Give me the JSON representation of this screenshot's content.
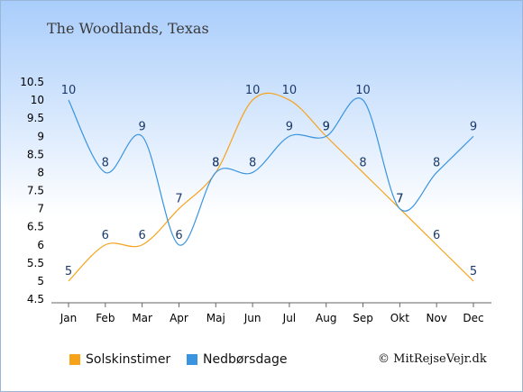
{
  "title": "The Woodlands, Texas",
  "credit": "© MitRejseVejr.dk",
  "chart_data": {
    "type": "line",
    "categories": [
      "Jan",
      "Feb",
      "Mar",
      "Apr",
      "Maj",
      "Jun",
      "Jul",
      "Aug",
      "Sep",
      "Okt",
      "Nov",
      "Dec"
    ],
    "ylim": [
      4.5,
      10.5
    ],
    "yticks": [
      "4.5",
      "5",
      "5.5",
      "6",
      "6.5",
      "7",
      "7.5",
      "8",
      "8.5",
      "9",
      "9.5",
      "10",
      "10.5"
    ],
    "grid": false,
    "legend": "bottom",
    "series": [
      {
        "name": "Solskinstimer",
        "color": "#f6a31b",
        "values": [
          5,
          6,
          6,
          7,
          8,
          10,
          10,
          9,
          8,
          7,
          6,
          5
        ]
      },
      {
        "name": "Nedbørsdage",
        "color": "#3a94e0",
        "values": [
          10,
          8,
          9,
          6,
          8,
          8,
          9,
          9,
          10,
          7,
          8,
          9
        ]
      }
    ]
  }
}
